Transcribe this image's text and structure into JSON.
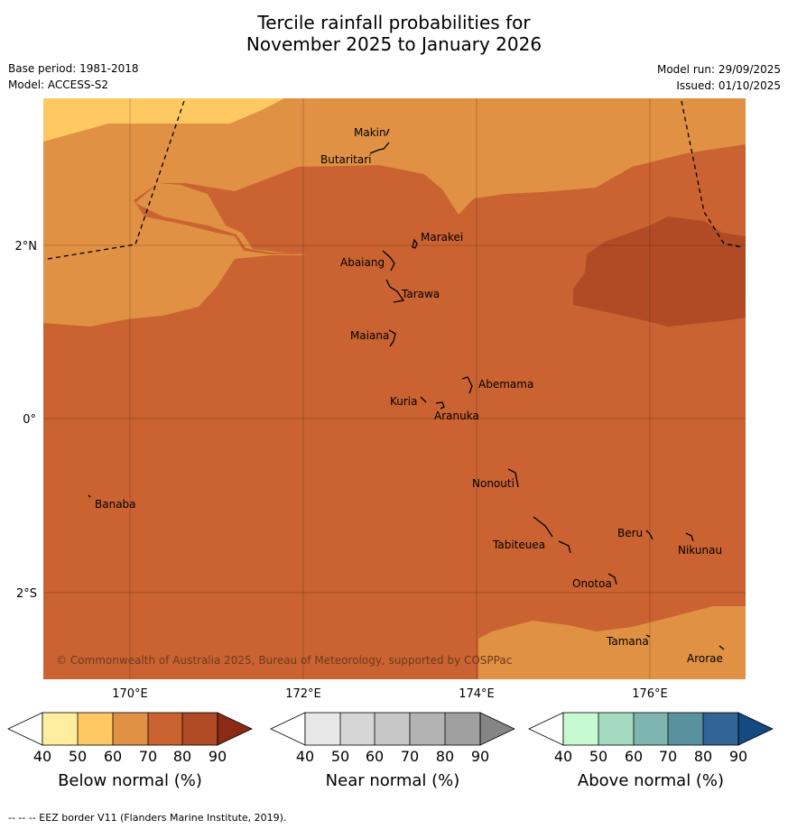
{
  "title": {
    "line1": "Tercile rainfall probabilities for",
    "line2": "November 2025 to January 2026"
  },
  "meta": {
    "base_period": "Base period: 1981-2018",
    "model": "Model: ACCESS-S2",
    "model_run": "Model run: 29/09/2025",
    "issued": "Issued: 01/10/2025"
  },
  "axes": {
    "lon_labels": [
      "170°E",
      "172°E",
      "174°E",
      "176°E"
    ],
    "lat_labels": [
      "2°N",
      "0°",
      "2°S"
    ]
  },
  "places": [
    "Makin",
    "Butaritari",
    "Marakei",
    "Abaiang",
    "Tarawa",
    "Maiana",
    "Abemama",
    "Kuria",
    "Aranuka",
    "Banaba",
    "Nonouti",
    "Beru",
    "Nikunau",
    "Tabiteuea",
    "Onotoa",
    "Tamana",
    "Arorae"
  ],
  "copyright": "© Commonwealth of Australia 2025, Bureau of Meteorology, supported by COSPPac",
  "colorbars": [
    {
      "name": "below",
      "label": "Below normal (%)",
      "ticks": [
        "40",
        "50",
        "60",
        "70",
        "80",
        "90"
      ],
      "colors": [
        "#ffffff",
        "#ffeda0",
        "#fec962",
        "#e09143",
        "#ca6331",
        "#b04b26",
        "#8b2a15"
      ]
    },
    {
      "name": "near",
      "label": "Near normal (%)",
      "ticks": [
        "40",
        "50",
        "60",
        "70",
        "80",
        "90"
      ],
      "colors": [
        "#ffffff",
        "#e8e8e8",
        "#d6d6d6",
        "#c6c6c6",
        "#b3b3b3",
        "#a0a0a0",
        "#858585"
      ]
    },
    {
      "name": "above",
      "label": "Above normal (%)",
      "ticks": [
        "40",
        "50",
        "60",
        "70",
        "80",
        "90"
      ],
      "colors": [
        "#ffffff",
        "#c7fad0",
        "#a3d9bf",
        "#7eb5b0",
        "#5a919f",
        "#326498",
        "#144a80"
      ]
    }
  ],
  "footer": "--  --  -- EEZ border V11 (Flanders Marine Institute, 2019)."
}
